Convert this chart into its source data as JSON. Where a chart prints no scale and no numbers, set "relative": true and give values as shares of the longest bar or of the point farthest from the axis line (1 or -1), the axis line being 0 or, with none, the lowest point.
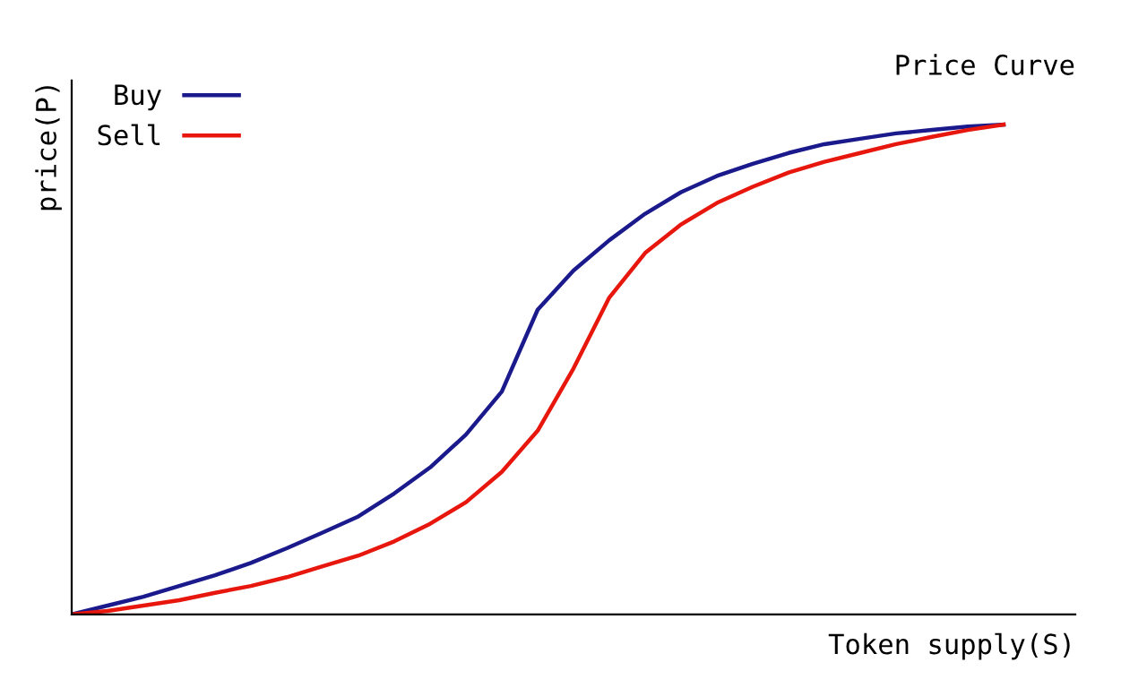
{
  "chart_data": {
    "type": "line",
    "title": "Price Curve",
    "xlabel": "Token supply(S)",
    "ylabel": "price(P)",
    "relative": true,
    "legend": "top left",
    "marker": "none",
    "line_style": "solid",
    "categories": [
      null,
      null,
      null,
      null,
      null,
      null,
      null,
      null,
      null,
      null,
      null,
      null,
      null,
      null,
      null,
      null,
      null,
      null,
      null,
      null,
      null,
      null,
      null,
      null,
      null,
      null,
      null
    ],
    "series": [
      {
        "name": "Buy",
        "color": "#1a1a8c",
        "values": [
          0,
          0.018,
          0.036,
          0.058,
          0.08,
          0.105,
          0.135,
          0.167,
          0.2,
          0.247,
          0.3,
          0.367,
          0.455,
          0.622,
          0.702,
          0.764,
          0.818,
          0.862,
          0.895,
          0.92,
          0.942,
          0.96,
          0.971,
          0.982,
          0.989,
          0.996,
          1
        ]
      },
      {
        "name": "Sell",
        "color": "#e8170e",
        "values": [
          0,
          0.007,
          0.018,
          0.029,
          0.044,
          0.058,
          0.076,
          0.098,
          0.12,
          0.149,
          0.185,
          0.229,
          0.291,
          0.375,
          0.502,
          0.647,
          0.738,
          0.796,
          0.84,
          0.873,
          0.902,
          0.924,
          0.942,
          0.96,
          0.975,
          0.989,
          1
        ]
      }
    ]
  }
}
